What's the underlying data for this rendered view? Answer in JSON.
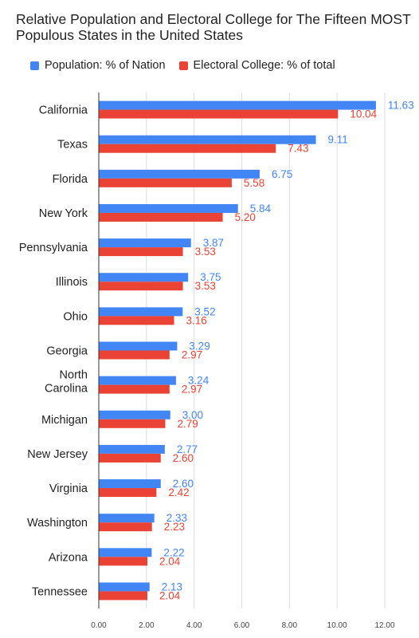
{
  "chart_data": {
    "type": "bar",
    "orientation": "horizontal",
    "title": "Relative Population and Electoral College for The Fifteen MOST Populous States in the United States",
    "categories": [
      "California",
      "Texas",
      "Florida",
      "New York",
      "Pennsylvania",
      "Illinois",
      "Ohio",
      "Georgia",
      "North Carolina",
      "Michigan",
      "New Jersey",
      "Virginia",
      "Washington",
      "Arizona",
      "Tennessee"
    ],
    "series": [
      {
        "name": "Population: % of Nation",
        "color": "#4285f4",
        "values": [
          11.63,
          9.11,
          6.75,
          5.84,
          3.87,
          3.75,
          3.52,
          3.29,
          3.24,
          3.0,
          2.77,
          2.6,
          2.33,
          2.22,
          2.13
        ],
        "labels": [
          "11.63",
          "9.11",
          "6.75",
          "5.84",
          "3.87",
          "3.75",
          "3.52",
          "3.29",
          "3.24",
          "3.00",
          "2.77",
          "2.60",
          "2.33",
          "2.22",
          "2.13"
        ]
      },
      {
        "name": "Electoral College: % of total",
        "color": "#ea4335",
        "values": [
          10.04,
          7.43,
          5.58,
          5.2,
          3.53,
          3.53,
          3.16,
          2.97,
          2.97,
          2.79,
          2.6,
          2.42,
          2.23,
          2.04,
          2.04
        ],
        "labels": [
          "10.04",
          "7.43",
          "5.58",
          "5.20",
          "3.53",
          "3.53",
          "3.16",
          "2.97",
          "2.97",
          "2.79",
          "2.60",
          "2.42",
          "2.23",
          "2.04",
          "2.04"
        ]
      }
    ],
    "xlim": [
      0,
      12
    ],
    "xticks": [
      "0.00",
      "2.00",
      "4.00",
      "6.00",
      "8.00",
      "10.00",
      "12.00"
    ],
    "xlabel": "",
    "ylabel": "",
    "grid": true,
    "legend_position": "top-left"
  }
}
